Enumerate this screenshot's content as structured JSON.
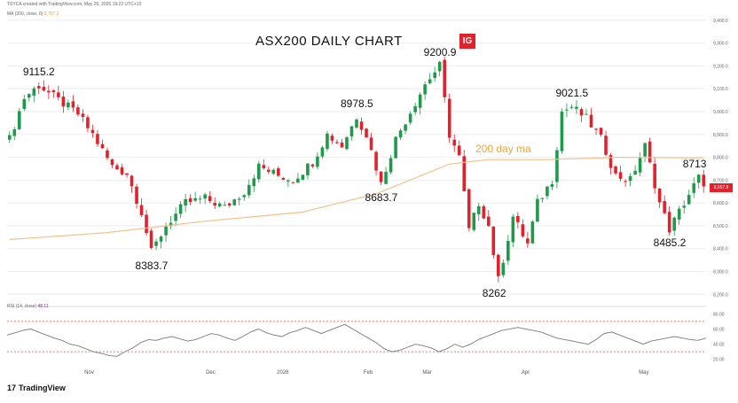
{
  "header": {
    "source": "TSYCA created with TradingView.com, May 26, 2026 19:23 UTC+10",
    "ma_legend": "MA (200, close, 0)",
    "ma_legend_value": "8,797.3",
    "rsi_legend": "RSI (14, close)",
    "rsi_legend_value": "48.11"
  },
  "title": "ASX200 DAILY CHART",
  "brand": "IG",
  "ma_label": "200 day ma",
  "current_price_box": "8,657.9",
  "footer_logo": "TradingView",
  "colors": {
    "up": "#1e9a4b",
    "down": "#e4202a",
    "ma": "#f2c18d",
    "rsi": "#7a7a7a",
    "rsi_band": "#e9573a",
    "grid": "#eeeeee"
  },
  "chart_data": [
    {
      "type": "candlestick",
      "title": "ASX200 DAILY CHART",
      "price_axis_unit": "points",
      "y_ticks": [
        "9,400.0",
        "9,300.0",
        "9,200.0",
        "9,100.0",
        "9,000.0",
        "8,900.0",
        "8,800.0",
        "8,700.0",
        "8,600.0",
        "8,500.0",
        "8,400.0",
        "8,300.0",
        "8,200.0"
      ],
      "ylim": [
        8170,
        9450
      ],
      "x_ticks": [
        "Nov",
        "Dec",
        "2026",
        "Feb",
        "Mar",
        "Apr",
        "May"
      ],
      "price_path": [
        [
          0,
          8880
        ],
        [
          3,
          9060
        ],
        [
          6,
          9115.2
        ],
        [
          10,
          9050
        ],
        [
          14,
          8990
        ],
        [
          17,
          8900
        ],
        [
          21,
          8760
        ],
        [
          24,
          8730
        ],
        [
          27,
          8560
        ],
        [
          29,
          8383.7
        ],
        [
          32,
          8500
        ],
        [
          36,
          8600
        ],
        [
          40,
          8620
        ],
        [
          44,
          8580
        ],
        [
          48,
          8650
        ],
        [
          51,
          8760
        ],
        [
          55,
          8720
        ],
        [
          58,
          8700
        ],
        [
          62,
          8780
        ],
        [
          65,
          8900
        ],
        [
          68,
          8850
        ],
        [
          71,
          8978.5
        ],
        [
          73,
          8900
        ],
        [
          76,
          8683.7
        ],
        [
          79,
          8880
        ],
        [
          82,
          9000
        ],
        [
          85,
          9120
        ],
        [
          88,
          9200.9
        ],
        [
          90,
          8900
        ],
        [
          92,
          8800
        ],
        [
          94,
          8480
        ],
        [
          96,
          8600
        ],
        [
          98,
          8500
        ],
        [
          100,
          8262
        ],
        [
          103,
          8540
        ],
        [
          106,
          8420
        ],
        [
          108,
          8600
        ],
        [
          111,
          8700
        ],
        [
          113,
          9000
        ],
        [
          115,
          9021.5
        ],
        [
          118,
          8970
        ],
        [
          121,
          8880
        ],
        [
          124,
          8720
        ],
        [
          127,
          8700
        ],
        [
          130,
          8850
        ],
        [
          133,
          8600
        ],
        [
          135,
          8485.2
        ],
        [
          138,
          8600
        ],
        [
          141,
          8713
        ],
        [
          142,
          8657.9
        ]
      ],
      "series": [
        {
          "name": "MA (200, close, 0)",
          "points": [
            [
              0,
              8440
            ],
            [
              20,
              8470
            ],
            [
              40,
              8520
            ],
            [
              60,
              8560
            ],
            [
              75,
              8640
            ],
            [
              90,
              8770
            ],
            [
              98,
              8790
            ],
            [
              110,
              8790
            ],
            [
              125,
              8800
            ],
            [
              142,
              8797.3
            ]
          ]
        }
      ],
      "annotations": [
        {
          "label": "9115.2",
          "x": 6,
          "y": 9115.2
        },
        {
          "label": "8383.7",
          "x": 29,
          "y": 8383.7
        },
        {
          "label": "8978.5",
          "x": 71,
          "y": 8978.5
        },
        {
          "label": "8683.7",
          "x": 76,
          "y": 8683.7
        },
        {
          "label": "9200.9",
          "x": 88,
          "y": 9200.9
        },
        {
          "label": "8262",
          "x": 100,
          "y": 8262
        },
        {
          "label": "9021.5",
          "x": 115,
          "y": 9021.5
        },
        {
          "label": "8485.2",
          "x": 135,
          "y": 8485.2
        },
        {
          "label": "8713",
          "x": 141,
          "y": 8713
        }
      ]
    },
    {
      "type": "line",
      "title": "RSI (14, close)",
      "y_ticks": [
        "80.00",
        "60.00",
        "40.00",
        "20.00"
      ],
      "ylim": [
        15,
        85
      ],
      "bands": [
        70,
        30
      ],
      "values": [
        52,
        55,
        58,
        60,
        56,
        52,
        48,
        45,
        40,
        38,
        34,
        30,
        28,
        25,
        24,
        30,
        35,
        42,
        46,
        45,
        48,
        50,
        47,
        44,
        46,
        50,
        54,
        52,
        48,
        45,
        50,
        56,
        60,
        55,
        52,
        50,
        55,
        58,
        62,
        58,
        54,
        58,
        62,
        66,
        60,
        54,
        48,
        42,
        34,
        30,
        32,
        36,
        40,
        38,
        35,
        30,
        34,
        40,
        36,
        40,
        46,
        50,
        54,
        58,
        60,
        62,
        60,
        58,
        56,
        52,
        48,
        46,
        44,
        42,
        40,
        46,
        54,
        56,
        52,
        48,
        44,
        40,
        44,
        46,
        48,
        50,
        48,
        46,
        45,
        48
      ]
    }
  ]
}
